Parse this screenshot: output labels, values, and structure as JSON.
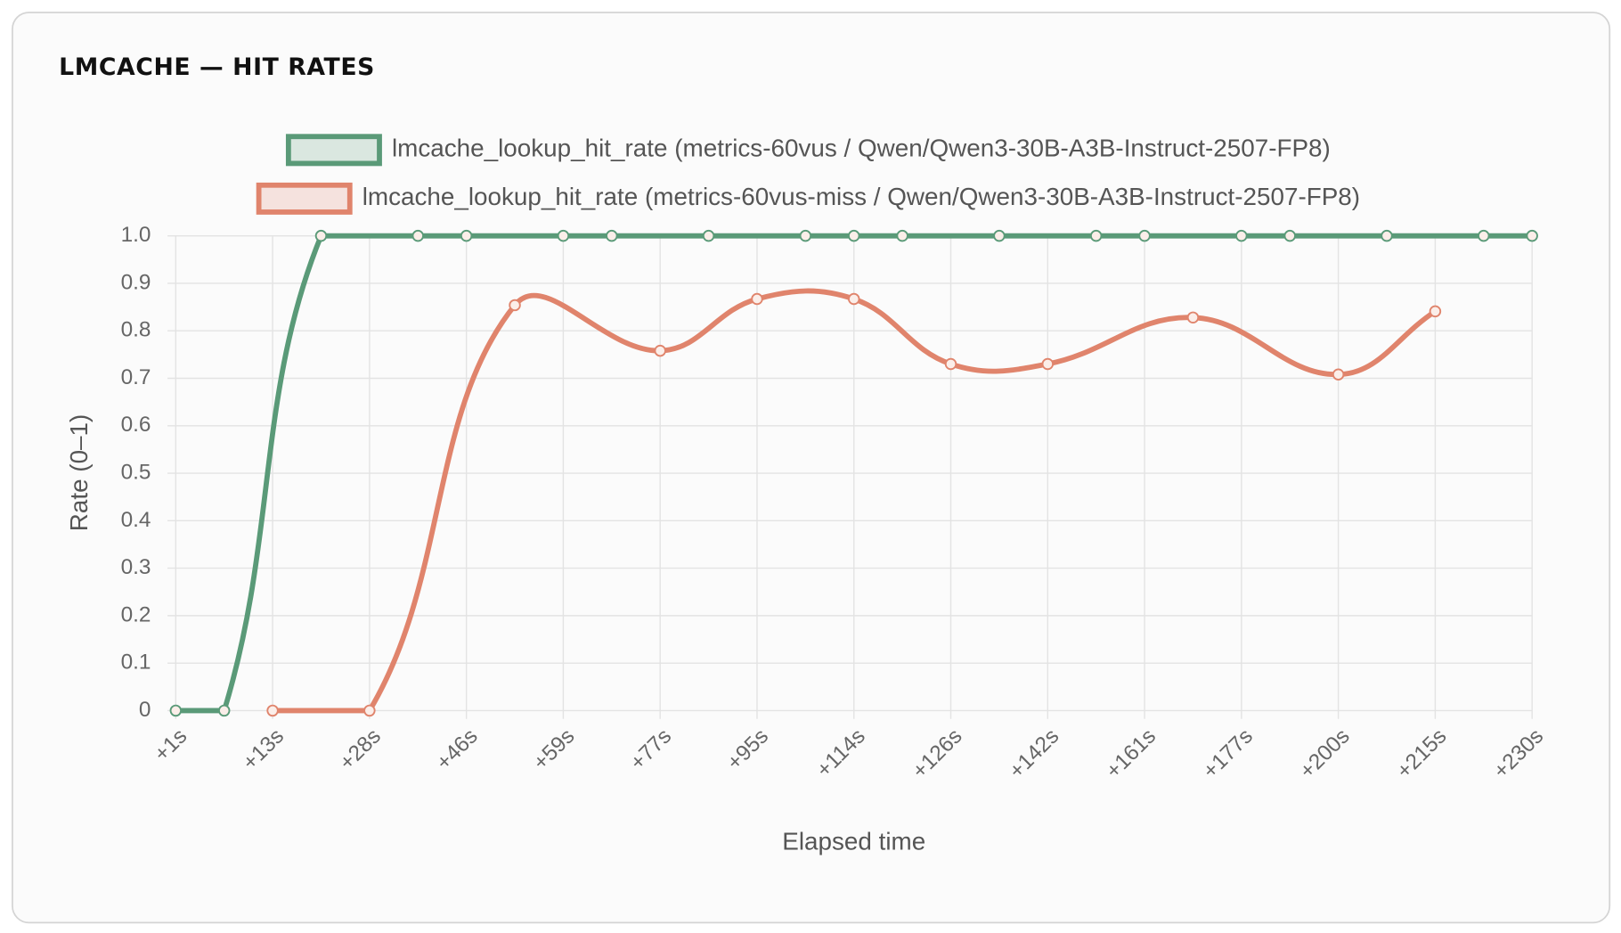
{
  "chart_data": {
    "type": "line",
    "title": "LMCACHE — HIT RATES",
    "x_label": "Elapsed time",
    "y_label": "Rate (0–1)",
    "categories": [
      "+1s",
      null,
      "+13s",
      null,
      "+28s",
      null,
      "+46s",
      null,
      "+59s",
      null,
      "+77s",
      null,
      "+95s",
      null,
      "+114s",
      null,
      "+126s",
      null,
      "+142s",
      null,
      "+161s",
      null,
      "+177s",
      null,
      "+200s",
      null,
      "+215s",
      null,
      "+230s"
    ],
    "series": [
      {
        "name": "lmcache_lookup_hit_rate (metrics-60vus / Qwen/Qwen3-30B-A3B-Instruct-2507-FP8)",
        "color": "#5a9a78",
        "values": [
          0,
          0,
          null,
          1,
          null,
          1,
          1,
          null,
          1,
          1,
          null,
          1,
          null,
          1,
          1,
          1,
          null,
          1,
          null,
          1,
          1,
          null,
          1,
          1,
          null,
          1,
          null,
          1,
          1
        ]
      },
      {
        "name": "lmcache_lookup_hit_rate (metrics-60vus-miss / Qwen/Qwen3-30B-A3B-Instruct-2507-FP8)",
        "color": "#e0846c",
        "values": [
          null,
          null,
          0,
          null,
          0,
          null,
          null,
          0.854,
          null,
          null,
          0.758,
          null,
          0.867,
          null,
          0.867,
          null,
          0.73,
          null,
          0.73,
          null,
          null,
          0.828,
          null,
          null,
          0.708,
          null,
          0.841,
          null,
          null
        ]
      }
    ],
    "ylim": [
      0,
      1
    ],
    "yticks": [
      0,
      {
        "value": 0.1,
        "label": "0.1"
      },
      {
        "value": 0.2,
        "label": "0.2"
      },
      {
        "value": 0.3,
        "label": "0.3"
      },
      {
        "value": 0.4,
        "label": "0.4"
      },
      {
        "value": 0.5,
        "label": "0.5"
      },
      {
        "value": 0.6,
        "label": "0.6"
      },
      {
        "value": 0.7,
        "label": "0.7"
      },
      {
        "value": 0.8,
        "label": "0.8"
      },
      {
        "value": 0.9,
        "label": "0.9"
      },
      {
        "value": 1,
        "label": "1.0"
      }
    ],
    "grid": true,
    "span_gaps": true,
    "legend": "top"
  }
}
